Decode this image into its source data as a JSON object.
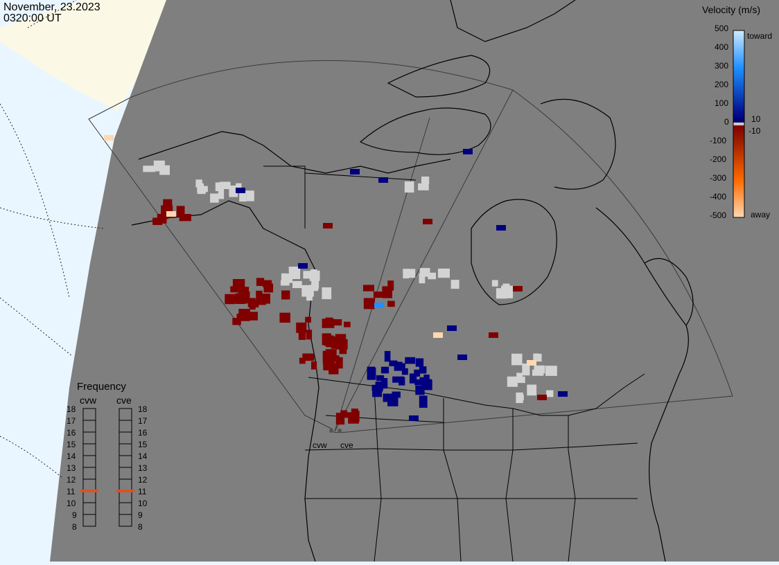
{
  "header": {
    "date": "November, 23.2023",
    "time": "0320:00 UT"
  },
  "colorbar": {
    "title": "Velocity (m/s)",
    "ticks": [
      "500",
      "400",
      "300",
      "200",
      "100",
      "10",
      "0",
      "-10",
      "-100",
      "-200",
      "-300",
      "-400",
      "-500"
    ],
    "toward_label": "toward",
    "away_label": "away",
    "colors": {
      "toward_high": "#cfeaff",
      "toward_mid": "#1e90ff",
      "toward_low": "#000080",
      "zero": "#d3d3d3",
      "away_low": "#800000",
      "away_mid": "#ff6a00",
      "away_high": "#ffd8b0"
    }
  },
  "frequency": {
    "title": "Frequency",
    "radars": [
      "cvw",
      "cve"
    ],
    "scale": [
      18,
      17,
      16,
      15,
      14,
      13,
      12,
      11,
      10,
      9,
      8
    ],
    "cvw_mhz": 11,
    "cve_mhz": 11,
    "marker_color": "#e05020"
  },
  "radar_labels": [
    "cvw",
    "cve"
  ],
  "map_colors": {
    "ocean_visible": "#7f7f7f",
    "land_line": "#000000",
    "sunlit": "#eaf6ff",
    "sunlit_land": "#fbf9e6"
  }
}
